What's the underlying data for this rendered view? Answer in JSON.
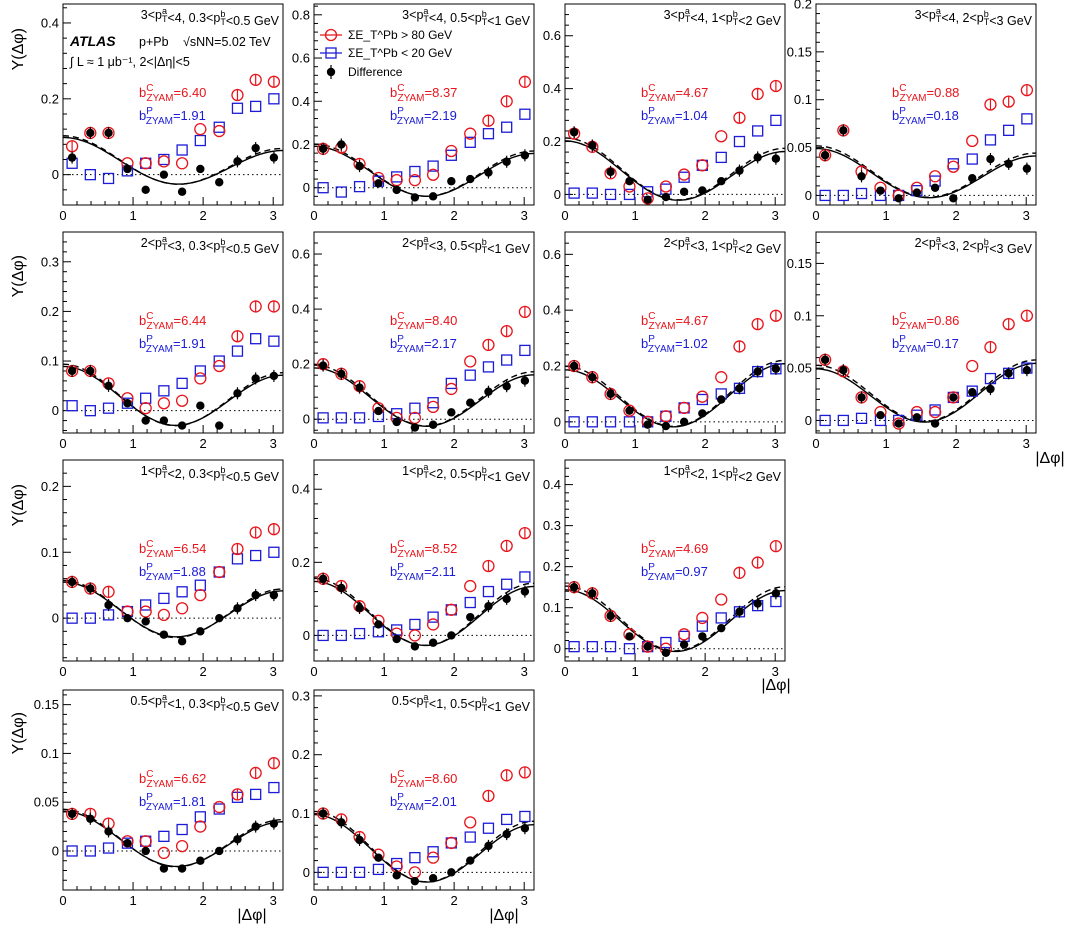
{
  "colors": {
    "central": "#e8141b",
    "peripheral": "#1b1bd8",
    "difference": "#000000"
  },
  "figure": {
    "y_axis_title": "Y(Δφ)",
    "x_axis_title": "|Δφ|",
    "atlas_label": "ATLAS",
    "system": "p+Pb",
    "energy": "√sNN=5.02 TeV",
    "lumi": "∫ L ≈ 1 μb⁻¹, 2<|Δη|<5"
  },
  "legend": {
    "central": "ΣE_T^Pb > 80 GeV",
    "peripheral": "ΣE_T^Pb < 20 GeV",
    "difference": "Difference"
  },
  "chart_data": [
    {
      "type": "scatter",
      "panel": "3<pTa<4, 0.3<pTb<0.5 GeV",
      "title": "3<p_T^a<4, 0.3<p_T^b<0.5 GeV",
      "b_c": "b^C_ZYAM=6.40",
      "b_p": "b^P_ZYAM=1.91",
      "xlim": [
        0,
        3.14
      ],
      "ylim": [
        -0.08,
        0.45
      ],
      "yticks": [
        0,
        0.2,
        0.4
      ],
      "xticks": [
        0,
        1,
        2,
        3
      ],
      "x": [
        0.13,
        0.39,
        0.65,
        0.92,
        1.18,
        1.44,
        1.7,
        1.96,
        2.23,
        2.49,
        2.75,
        3.01
      ],
      "central": [
        0.075,
        0.11,
        0.11,
        0.03,
        0.03,
        0.035,
        0.03,
        0.12,
        0.115,
        0.21,
        0.25,
        0.245
      ],
      "peripheral": [
        0.03,
        0.0,
        -0.01,
        0.01,
        0.03,
        0.04,
        0.065,
        0.09,
        0.125,
        0.175,
        0.18,
        0.2
      ],
      "difference": [
        0.045,
        0.11,
        0.11,
        0.015,
        -0.04,
        0.0,
        -0.045,
        0.015,
        -0.02,
        0.035,
        0.07,
        0.045
      ]
    },
    {
      "type": "scatter",
      "panel": "3<pTa<4, 0.5<pTb<1 GeV",
      "title": "3<p_T^a<4, 0.5<p_T^b<1 GeV",
      "b_c": "b^C_ZYAM=8.37",
      "b_p": "b^P_ZYAM=2.19",
      "xlim": [
        0,
        3.14
      ],
      "ylim": [
        -0.08,
        0.85
      ],
      "yticks": [
        0,
        0.2,
        0.4,
        0.6,
        0.8
      ],
      "xticks": [
        0,
        1,
        2,
        3
      ],
      "x": [
        0.13,
        0.39,
        0.65,
        0.92,
        1.18,
        1.44,
        1.7,
        1.96,
        2.23,
        2.49,
        2.75,
        3.01
      ],
      "central": [
        0.18,
        0.185,
        0.11,
        0.045,
        0.035,
        0.035,
        0.06,
        0.17,
        0.25,
        0.31,
        0.4,
        0.49
      ],
      "peripheral": [
        0.0,
        -0.02,
        0.005,
        0.03,
        0.05,
        0.075,
        0.1,
        0.15,
        0.21,
        0.25,
        0.28,
        0.34
      ],
      "difference": [
        0.18,
        0.2,
        0.1,
        0.02,
        -0.01,
        -0.045,
        -0.04,
        0.03,
        0.04,
        0.07,
        0.12,
        0.15
      ]
    },
    {
      "type": "scatter",
      "panel": "3<pTa<4, 1<pTb<2 GeV",
      "title": "3<p_T^a<4, 1<p_T^b<2 GeV",
      "b_c": "b^C_ZYAM=4.67",
      "b_p": "b^P_ZYAM=1.04",
      "xlim": [
        0,
        3.14
      ],
      "ylim": [
        -0.04,
        0.72
      ],
      "yticks": [
        0,
        0.2,
        0.4,
        0.6
      ],
      "xticks": [
        0,
        1,
        2,
        3
      ],
      "x": [
        0.13,
        0.39,
        0.65,
        0.92,
        1.18,
        1.44,
        1.7,
        1.96,
        2.23,
        2.49,
        2.75,
        3.01
      ],
      "central": [
        0.23,
        0.18,
        0.08,
        0.03,
        -0.015,
        0.03,
        0.075,
        0.11,
        0.22,
        0.29,
        0.38,
        0.41
      ],
      "peripheral": [
        0.005,
        0.005,
        0.0,
        0.0,
        0.01,
        0.02,
        0.065,
        0.11,
        0.14,
        0.2,
        0.24,
        0.28
      ],
      "difference": [
        0.235,
        0.185,
        0.085,
        0.05,
        -0.02,
        -0.01,
        0.01,
        0.015,
        0.05,
        0.09,
        0.14,
        0.135
      ]
    },
    {
      "type": "scatter",
      "panel": "3<pTa<4, 2<pTb<3 GeV",
      "title": "3<p_T^a<4, 2<p_T^b<3 GeV",
      "b_c": "b^C_ZYAM=0.88",
      "b_p": "b^P_ZYAM=0.18",
      "xlim": [
        0,
        3.14
      ],
      "ylim": [
        -0.01,
        0.2
      ],
      "yticks": [
        0,
        0.05,
        0.1,
        0.15,
        0.2
      ],
      "xticks": [
        0,
        1,
        2,
        3
      ],
      "x": [
        0.13,
        0.39,
        0.65,
        0.92,
        1.18,
        1.44,
        1.7,
        1.96,
        2.23,
        2.49,
        2.75,
        3.01
      ],
      "central": [
        0.042,
        0.068,
        0.025,
        0.008,
        0.0,
        0.008,
        0.02,
        0.03,
        0.057,
        0.095,
        0.098,
        0.11
      ],
      "peripheral": [
        0.0,
        0.0,
        0.002,
        0.0,
        0.0,
        0.005,
        0.015,
        0.033,
        0.038,
        0.058,
        0.068,
        0.08
      ],
      "difference": [
        0.042,
        0.068,
        0.02,
        0.005,
        -0.003,
        0.003,
        0.008,
        -0.003,
        0.018,
        0.038,
        0.033,
        0.028
      ]
    },
    {
      "type": "scatter",
      "panel": "2<pTa<3, 0.3<pTb<0.5 GeV",
      "title": "2<p_T^a<3, 0.3<p_T^b<0.5 GeV",
      "b_c": "b^C_ZYAM=6.44",
      "b_p": "b^P_ZYAM=1.91",
      "xlim": [
        0,
        3.14
      ],
      "ylim": [
        -0.045,
        0.36
      ],
      "yticks": [
        0,
        0.1,
        0.2,
        0.3
      ],
      "xticks": [
        0,
        1,
        2,
        3
      ],
      "x": [
        0.13,
        0.39,
        0.65,
        0.92,
        1.18,
        1.44,
        1.7,
        1.96,
        2.23,
        2.49,
        2.75,
        3.01
      ],
      "central": [
        0.08,
        0.08,
        0.055,
        0.025,
        0.005,
        0.015,
        0.02,
        0.065,
        0.09,
        0.15,
        0.21,
        0.21
      ],
      "peripheral": [
        0.01,
        0.0,
        0.005,
        0.015,
        0.025,
        0.04,
        0.055,
        0.08,
        0.1,
        0.12,
        0.145,
        0.14
      ],
      "difference": [
        0.08,
        0.08,
        0.05,
        0.015,
        -0.02,
        -0.02,
        -0.03,
        0.01,
        -0.03,
        0.035,
        0.065,
        0.07
      ]
    },
    {
      "type": "scatter",
      "panel": "2<pTa<3, 0.5<pTb<1 GeV",
      "title": "2<p_T^a<3, 0.5<p_T^b<1 GeV",
      "b_c": "b^C_ZYAM=8.40",
      "b_p": "b^P_ZYAM=2.17",
      "xlim": [
        0,
        3.14
      ],
      "ylim": [
        -0.05,
        0.68
      ],
      "yticks": [
        0,
        0.2,
        0.4,
        0.6
      ],
      "xticks": [
        0,
        1,
        2,
        3
      ],
      "x": [
        0.13,
        0.39,
        0.65,
        0.92,
        1.18,
        1.44,
        1.7,
        1.96,
        2.23,
        2.49,
        2.75,
        3.01
      ],
      "central": [
        0.2,
        0.165,
        0.12,
        0.04,
        0.005,
        0.005,
        0.045,
        0.11,
        0.21,
        0.27,
        0.32,
        0.39
      ],
      "peripheral": [
        0.005,
        0.005,
        0.005,
        0.01,
        0.02,
        0.04,
        0.06,
        0.13,
        0.16,
        0.19,
        0.215,
        0.25
      ],
      "difference": [
        0.195,
        0.165,
        0.115,
        0.03,
        -0.01,
        -0.03,
        -0.02,
        0.025,
        0.06,
        0.1,
        0.12,
        0.14
      ]
    },
    {
      "type": "scatter",
      "panel": "2<pTa<3, 1<pTb<2 GeV",
      "title": "2<p_T^a<3, 1<p_T^b<2 GeV",
      "b_c": "b^C_ZYAM=4.67",
      "b_p": "b^P_ZYAM=1.02",
      "xlim": [
        0,
        3.14
      ],
      "ylim": [
        -0.04,
        0.68
      ],
      "yticks": [
        0,
        0.2,
        0.4,
        0.6
      ],
      "xticks": [
        0,
        1,
        2,
        3
      ],
      "x": [
        0.13,
        0.39,
        0.65,
        0.92,
        1.18,
        1.44,
        1.7,
        1.96,
        2.23,
        2.49,
        2.75,
        3.01
      ],
      "central": [
        0.2,
        0.16,
        0.1,
        0.04,
        0.0,
        0.02,
        0.05,
        0.09,
        0.16,
        0.27,
        0.35,
        0.38
      ],
      "peripheral": [
        0.0,
        0.0,
        0.0,
        0.0,
        0.0,
        0.02,
        0.05,
        0.08,
        0.1,
        0.12,
        0.18,
        0.19
      ],
      "difference": [
        0.2,
        0.16,
        0.1,
        0.04,
        -0.01,
        -0.015,
        0.0,
        0.03,
        0.08,
        0.12,
        0.18,
        0.19
      ]
    },
    {
      "type": "scatter",
      "panel": "2<pTa<3, 2<pTb<3 GeV",
      "title": "2<p_T^a<3, 2<p_T^b<3 GeV",
      "b_c": "b^C_ZYAM=0.86",
      "b_p": "b^P_ZYAM=0.17",
      "xlim": [
        0,
        3.14
      ],
      "ylim": [
        -0.012,
        0.18
      ],
      "yticks": [
        0,
        0.05,
        0.1,
        0.15
      ],
      "xticks": [
        0,
        1,
        2,
        3
      ],
      "x": [
        0.13,
        0.39,
        0.65,
        0.92,
        1.18,
        1.44,
        1.7,
        1.96,
        2.23,
        2.49,
        2.75,
        3.01
      ],
      "central": [
        0.058,
        0.047,
        0.022,
        0.008,
        -0.003,
        0.008,
        0.008,
        0.022,
        0.052,
        0.07,
        0.092,
        0.1
      ],
      "peripheral": [
        0.0,
        0.0,
        0.002,
        0.0,
        0.0,
        0.005,
        0.01,
        0.022,
        0.028,
        0.04,
        0.045,
        0.05
      ],
      "difference": [
        0.058,
        0.048,
        0.022,
        0.005,
        -0.003,
        0.003,
        -0.003,
        0.022,
        0.027,
        0.03,
        0.045,
        0.048
      ]
    },
    {
      "type": "scatter",
      "panel": "1<pTa<2, 0.3<pTb<0.5 GeV",
      "title": "1<p_T^a<2, 0.3<p_T^b<0.5 GeV",
      "b_c": "b^C_ZYAM=6.54",
      "b_p": "b^P_ZYAM=1.88",
      "xlim": [
        0,
        3.14
      ],
      "ylim": [
        -0.065,
        0.24
      ],
      "yticks": [
        0,
        0.1,
        0.2
      ],
      "xticks": [
        0,
        1,
        2,
        3
      ],
      "x": [
        0.13,
        0.39,
        0.65,
        0.92,
        1.18,
        1.44,
        1.7,
        1.96,
        2.23,
        2.49,
        2.75,
        3.01
      ],
      "central": [
        0.055,
        0.045,
        0.04,
        0.01,
        0.01,
        0.005,
        0.015,
        0.035,
        0.07,
        0.105,
        0.13,
        0.135
      ],
      "peripheral": [
        0.0,
        0.0,
        0.005,
        0.01,
        0.02,
        0.03,
        0.04,
        0.05,
        0.07,
        0.09,
        0.095,
        0.1
      ],
      "difference": [
        0.055,
        0.045,
        0.02,
        0.0,
        -0.005,
        -0.025,
        -0.035,
        -0.02,
        0.0,
        0.015,
        0.035,
        0.035
      ]
    },
    {
      "type": "scatter",
      "panel": "1<pTa<2, 0.5<pTb<1 GeV",
      "title": "1<p_T^a<2, 0.5<p_T^b<1 GeV",
      "b_c": "b^C_ZYAM=8.52",
      "b_p": "b^P_ZYAM=2.11",
      "xlim": [
        0,
        3.14
      ],
      "ylim": [
        -0.07,
        0.48
      ],
      "yticks": [
        0,
        0.2,
        0.4
      ],
      "xticks": [
        0,
        1,
        2,
        3
      ],
      "x": [
        0.13,
        0.39,
        0.65,
        0.92,
        1.18,
        1.44,
        1.7,
        1.96,
        2.23,
        2.49,
        2.75,
        3.01
      ],
      "central": [
        0.155,
        0.135,
        0.08,
        0.04,
        0.005,
        0.0,
        0.03,
        0.07,
        0.135,
        0.19,
        0.245,
        0.28
      ],
      "peripheral": [
        0.0,
        0.0,
        0.005,
        0.01,
        0.015,
        0.03,
        0.05,
        0.07,
        0.09,
        0.12,
        0.14,
        0.16
      ],
      "difference": [
        0.155,
        0.13,
        0.075,
        0.03,
        -0.01,
        -0.03,
        -0.02,
        0.0,
        0.05,
        0.08,
        0.1,
        0.12
      ]
    },
    {
      "type": "scatter",
      "panel": "1<pTa<2, 1<pTb<2 GeV",
      "title": "1<p_T^a<2, 1<p_T^b<2 GeV",
      "b_c": "b^C_ZYAM=4.69",
      "b_p": "b^P_ZYAM=0.97",
      "xlim": [
        0,
        3.14
      ],
      "ylim": [
        -0.03,
        0.46
      ],
      "yticks": [
        0,
        0.1,
        0.2,
        0.3,
        0.4
      ],
      "xticks": [
        0,
        1,
        2,
        3
      ],
      "x": [
        0.13,
        0.39,
        0.65,
        0.92,
        1.18,
        1.44,
        1.7,
        1.96,
        2.23,
        2.49,
        2.75,
        3.01
      ],
      "central": [
        0.15,
        0.135,
        0.08,
        0.035,
        0.005,
        0.0,
        0.035,
        0.075,
        0.12,
        0.185,
        0.21,
        0.25
      ],
      "peripheral": [
        0.005,
        0.005,
        0.005,
        0.0,
        0.005,
        0.015,
        0.03,
        0.055,
        0.075,
        0.09,
        0.105,
        0.115
      ],
      "difference": [
        0.15,
        0.135,
        0.08,
        0.03,
        0.005,
        -0.01,
        0.01,
        0.03,
        0.05,
        0.09,
        0.11,
        0.135
      ]
    },
    {
      "type": "scatter",
      "panel": "0.5<pTa<1, 0.3<pTb<0.5 GeV",
      "title": "0.5<p_T^a<1, 0.3<p_T^b<0.5 GeV",
      "b_c": "b^C_ZYAM=6.62",
      "b_p": "b^P_ZYAM=1.81",
      "xlim": [
        0,
        3.14
      ],
      "ylim": [
        -0.04,
        0.165
      ],
      "yticks": [
        0,
        0.05,
        0.1,
        0.15
      ],
      "xticks": [
        0,
        1,
        2,
        3
      ],
      "x": [
        0.13,
        0.39,
        0.65,
        0.92,
        1.18,
        1.44,
        1.7,
        1.96,
        2.23,
        2.49,
        2.75,
        3.01
      ],
      "central": [
        0.038,
        0.038,
        0.028,
        0.01,
        0.01,
        -0.002,
        0.005,
        0.025,
        0.045,
        0.058,
        0.08,
        0.09
      ],
      "peripheral": [
        0.0,
        0.0,
        0.003,
        0.008,
        0.01,
        0.015,
        0.022,
        0.035,
        0.043,
        0.055,
        0.058,
        0.065
      ],
      "difference": [
        0.038,
        0.033,
        0.02,
        0.008,
        0.0,
        -0.018,
        -0.018,
        -0.01,
        0.0,
        0.012,
        0.025,
        0.028
      ]
    },
    {
      "type": "scatter",
      "panel": "0.5<pTa<1, 0.5<pTb<1 GeV",
      "title": "0.5<p_T^a<1, 0.5<p_T^b<1 GeV",
      "b_c": "b^C_ZYAM=8.60",
      "b_p": "b^P_ZYAM=2.01",
      "xlim": [
        0,
        3.14
      ],
      "ylim": [
        -0.03,
        0.31
      ],
      "yticks": [
        0,
        0.1,
        0.2,
        0.3
      ],
      "xticks": [
        0,
        1,
        2,
        3
      ],
      "x": [
        0.13,
        0.39,
        0.65,
        0.92,
        1.18,
        1.44,
        1.7,
        1.96,
        2.23,
        2.49,
        2.75,
        3.01
      ],
      "central": [
        0.1,
        0.09,
        0.06,
        0.03,
        0.01,
        0.0,
        0.025,
        0.05,
        0.085,
        0.13,
        0.165,
        0.17
      ],
      "peripheral": [
        0.0,
        0.0,
        0.0,
        0.005,
        0.015,
        0.025,
        0.035,
        0.05,
        0.06,
        0.075,
        0.09,
        0.095
      ],
      "difference": [
        0.1,
        0.085,
        0.055,
        0.025,
        -0.005,
        -0.015,
        -0.01,
        0.0,
        0.02,
        0.045,
        0.065,
        0.075
      ]
    }
  ]
}
